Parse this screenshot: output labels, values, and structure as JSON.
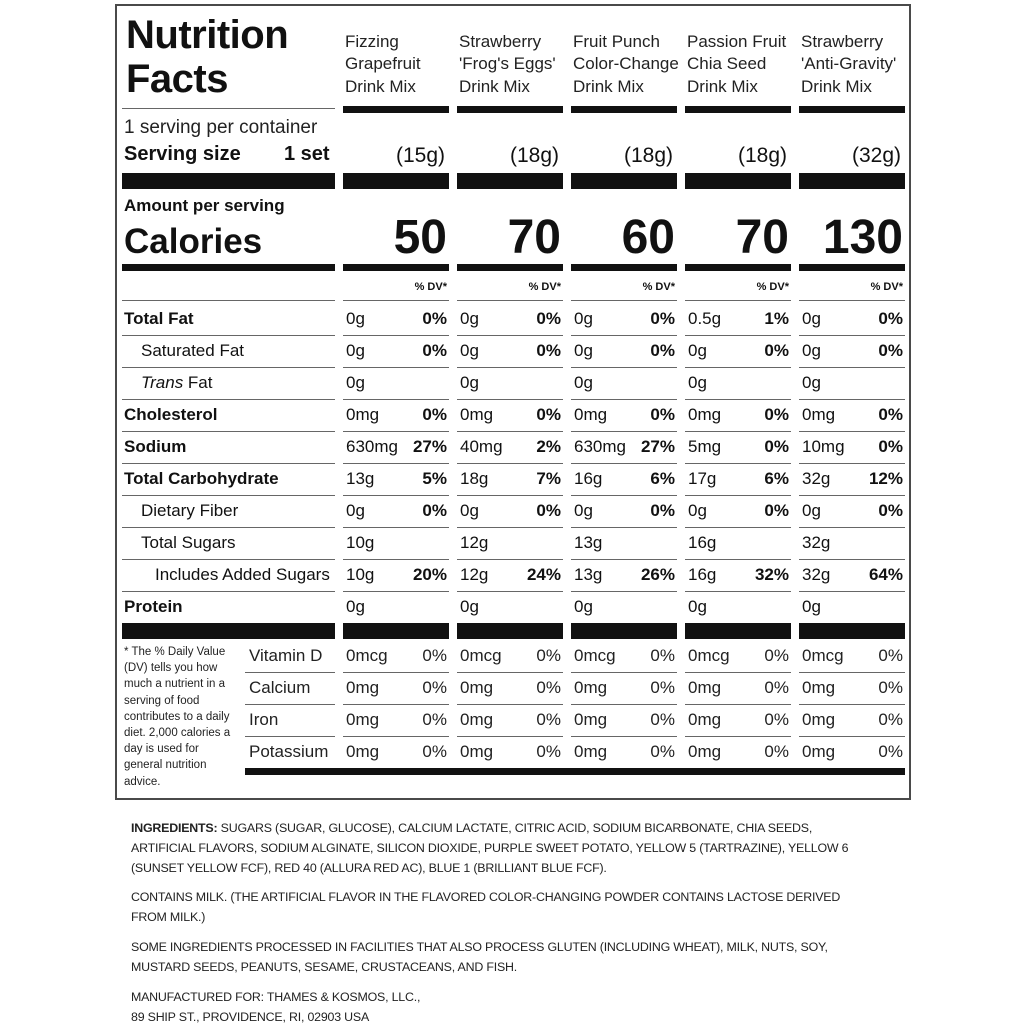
{
  "label": {
    "title_line1": "Nutrition",
    "title_line2": "Facts",
    "products": [
      {
        "line1": "Fizzing",
        "line2": "Grapefruit",
        "line3": "Drink Mix",
        "serving": "(15g)",
        "calories": "50"
      },
      {
        "line1": "Strawberry",
        "line2": "'Frog's Eggs'",
        "line3": "Drink Mix",
        "serving": "(18g)",
        "calories": "70"
      },
      {
        "line1": "Fruit Punch",
        "line2": "Color-Change",
        "line3": "Drink Mix",
        "serving": "(18g)",
        "calories": "60"
      },
      {
        "line1": "Passion Fruit",
        "line2": "Chia Seed",
        "line3": "Drink Mix",
        "serving": "(18g)",
        "calories": "70"
      },
      {
        "line1": "Strawberry",
        "line2": "'Anti-Gravity'",
        "line3": "Drink Mix",
        "serving": "(32g)",
        "calories": "130"
      }
    ],
    "servings_per_container": "1 serving per container",
    "serving_size_label": "Serving size",
    "serving_size_value": "1 set",
    "amount_per_serving": "Amount per serving",
    "calories_label": "Calories",
    "dv_header": "% DV*",
    "nutrients": [
      {
        "name": "Total Fat",
        "bold": true,
        "indent": 0,
        "italic_prefix": "",
        "values": [
          [
            "0g",
            "0%"
          ],
          [
            "0g",
            "0%"
          ],
          [
            "0g",
            "0%"
          ],
          [
            "0.5g",
            "1%"
          ],
          [
            "0g",
            "0%"
          ]
        ]
      },
      {
        "name": "Saturated Fat",
        "bold": false,
        "indent": 1,
        "italic_prefix": "",
        "values": [
          [
            "0g",
            "0%"
          ],
          [
            "0g",
            "0%"
          ],
          [
            "0g",
            "0%"
          ],
          [
            "0g",
            "0%"
          ],
          [
            "0g",
            "0%"
          ]
        ]
      },
      {
        "name": " Fat",
        "bold": false,
        "indent": 1,
        "italic_prefix": "Trans",
        "values": [
          [
            "0g",
            ""
          ],
          [
            "0g",
            ""
          ],
          [
            "0g",
            ""
          ],
          [
            "0g",
            ""
          ],
          [
            "0g",
            ""
          ]
        ]
      },
      {
        "name": "Cholesterol",
        "bold": true,
        "indent": 0,
        "italic_prefix": "",
        "values": [
          [
            "0mg",
            "0%"
          ],
          [
            "0mg",
            "0%"
          ],
          [
            "0mg",
            "0%"
          ],
          [
            "0mg",
            "0%"
          ],
          [
            "0mg",
            "0%"
          ]
        ]
      },
      {
        "name": "Sodium",
        "bold": true,
        "indent": 0,
        "italic_prefix": "",
        "values": [
          [
            "630mg",
            "27%"
          ],
          [
            "40mg",
            "2%"
          ],
          [
            "630mg",
            "27%"
          ],
          [
            "5mg",
            "0%"
          ],
          [
            "10mg",
            "0%"
          ]
        ]
      },
      {
        "name": "Total Carbohydrate",
        "bold": true,
        "indent": 0,
        "italic_prefix": "",
        "values": [
          [
            "13g",
            "5%"
          ],
          [
            "18g",
            "7%"
          ],
          [
            "16g",
            "6%"
          ],
          [
            "17g",
            "6%"
          ],
          [
            "32g",
            "12%"
          ]
        ]
      },
      {
        "name": "Dietary Fiber",
        "bold": false,
        "indent": 1,
        "italic_prefix": "",
        "values": [
          [
            "0g",
            "0%"
          ],
          [
            "0g",
            "0%"
          ],
          [
            "0g",
            "0%"
          ],
          [
            "0g",
            "0%"
          ],
          [
            "0g",
            "0%"
          ]
        ]
      },
      {
        "name": "Total Sugars",
        "bold": false,
        "indent": 1,
        "italic_prefix": "",
        "values": [
          [
            "10g",
            ""
          ],
          [
            "12g",
            ""
          ],
          [
            "13g",
            ""
          ],
          [
            "16g",
            ""
          ],
          [
            "32g",
            ""
          ]
        ]
      },
      {
        "name": "Includes Added Sugars",
        "bold": false,
        "indent": 2,
        "italic_prefix": "",
        "values": [
          [
            "10g",
            "20%"
          ],
          [
            "12g",
            "24%"
          ],
          [
            "13g",
            "26%"
          ],
          [
            "16g",
            "32%"
          ],
          [
            "32g",
            "64%"
          ]
        ]
      },
      {
        "name": "Protein",
        "bold": true,
        "indent": 0,
        "italic_prefix": "",
        "values": [
          [
            "0g",
            ""
          ],
          [
            "0g",
            ""
          ],
          [
            "0g",
            ""
          ],
          [
            "0g",
            ""
          ],
          [
            "0g",
            ""
          ]
        ]
      }
    ],
    "footnote": "* The % Daily Value (DV) tells you how much a nutrient in a serving of food contributes to a daily diet. 2,000 calories a day is used for general nutrition advice.",
    "vitamins": [
      {
        "name": "Vitamin D",
        "values": [
          [
            "0mcg",
            "0%"
          ],
          [
            "0mcg",
            "0%"
          ],
          [
            "0mcg",
            "0%"
          ],
          [
            "0mcg",
            "0%"
          ],
          [
            "0mcg",
            "0%"
          ]
        ]
      },
      {
        "name": "Calcium",
        "values": [
          [
            "0mg",
            "0%"
          ],
          [
            "0mg",
            "0%"
          ],
          [
            "0mg",
            "0%"
          ],
          [
            "0mg",
            "0%"
          ],
          [
            "0mg",
            "0%"
          ]
        ]
      },
      {
        "name": "Iron",
        "values": [
          [
            "0mg",
            "0%"
          ],
          [
            "0mg",
            "0%"
          ],
          [
            "0mg",
            "0%"
          ],
          [
            "0mg",
            "0%"
          ],
          [
            "0mg",
            "0%"
          ]
        ]
      },
      {
        "name": "Potassium",
        "values": [
          [
            "0mg",
            "0%"
          ],
          [
            "0mg",
            "0%"
          ],
          [
            "0mg",
            "0%"
          ],
          [
            "0mg",
            "0%"
          ],
          [
            "0mg",
            "0%"
          ]
        ]
      }
    ]
  },
  "ingredients": {
    "label": "INGREDIENTS:",
    "text": " SUGARS (SUGAR, GLUCOSE), CALCIUM LACTATE, CITRIC ACID, SODIUM BICARBONATE, CHIA SEEDS, ARTIFICIAL FLAVORS, SODIUM ALGINATE, SILICON DIOXIDE, PURPLE SWEET POTATO, YELLOW 5 (TARTRAZINE), YELLOW 6 (SUNSET YELLOW FCF), RED 40 (ALLURA RED AC), BLUE 1 (BRILLIANT BLUE FCF).",
    "contains": "CONTAINS MILK. (THE ARTIFICIAL FLAVOR IN THE FLAVORED COLOR-CHANGING POWDER CONTAINS LACTOSE DERIVED FROM MILK.)",
    "facilities": "SOME INGREDIENTS PROCESSED IN FACILITIES THAT ALSO PROCESS GLUTEN (INCLUDING WHEAT), MILK, NUTS, SOY, MUSTARD SEEDS, PEANUTS, SESAME, CRUSTACEANS, AND FISH.",
    "manufacturer_line1": "MANUFACTURED FOR: THAMES & KOSMOS, LLC.,",
    "manufacturer_line2": "89 SHIP ST., PROVIDENCE, RI, 02903 USA"
  }
}
